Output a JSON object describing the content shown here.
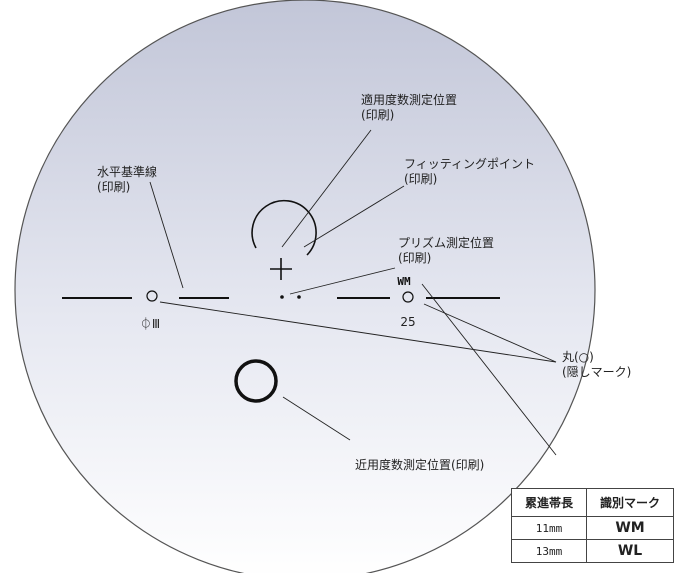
{
  "labels": {
    "power_position": [
      "適用度数測定位置",
      "(印刷)"
    ],
    "fitting_point": [
      "フィッティングポイント",
      "(印刷)"
    ],
    "horizontal_line": [
      "水平基準線",
      "(印刷)"
    ],
    "prism_position": [
      "プリズム測定位置",
      "(印刷)"
    ],
    "hidden_mark": [
      "丸(○)",
      "(隠しマーク)"
    ],
    "near_power_position": "近用度数測定位置(印刷)"
  },
  "lens_marks": {
    "left_symbol": "⏀Ⅲ",
    "right_code": "WM",
    "right_add": "25"
  },
  "table": {
    "headers": [
      "累進帯長",
      "識別マーク"
    ],
    "rows": [
      {
        "length": "11mm",
        "mark": "WM"
      },
      {
        "length": "13mm",
        "mark": "WL"
      }
    ]
  }
}
